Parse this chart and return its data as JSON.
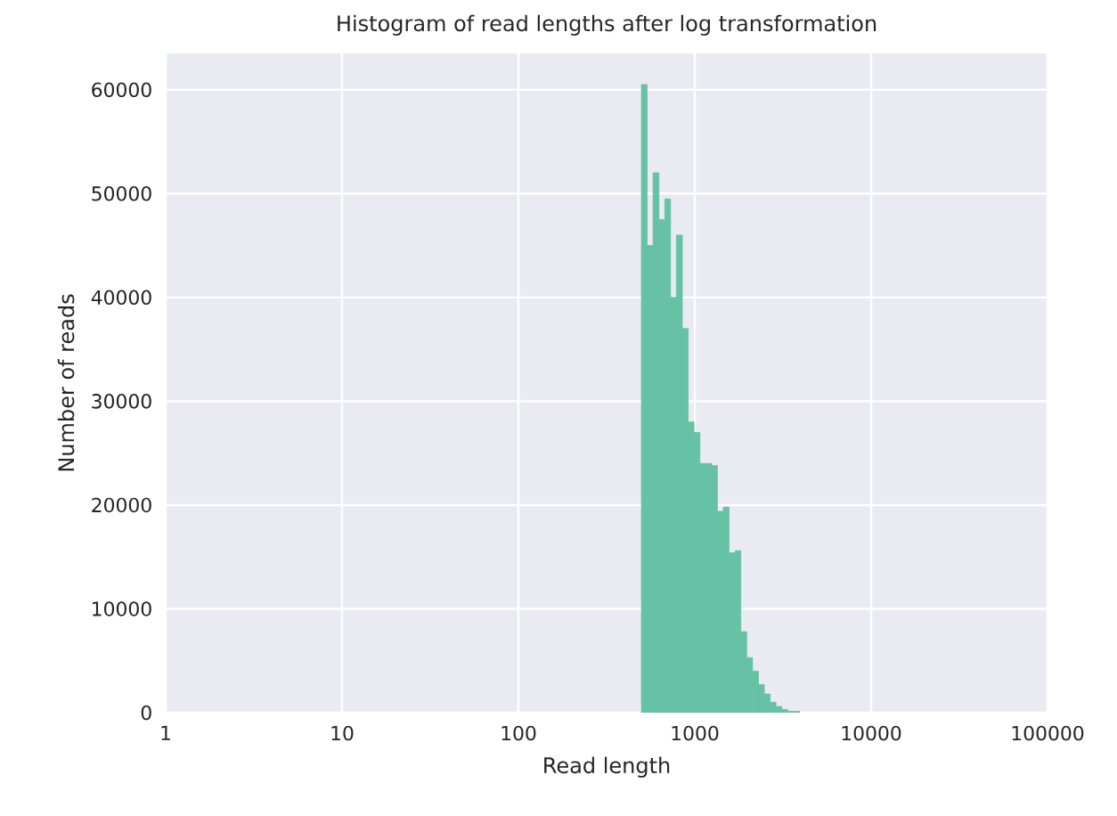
{
  "chart_data": {
    "type": "histogram",
    "title": "Histogram of read lengths after log transformation",
    "xlabel": "Read length",
    "ylabel": "Number of reads",
    "bins": [
      498,
      537,
      580,
      626,
      676,
      729,
      787,
      850,
      918,
      990,
      1069,
      1154,
      1246,
      1345,
      1451,
      1567,
      1691,
      1825,
      1970,
      2127,
      2296,
      2478,
      2675,
      2887,
      3117,
      3365,
      3632,
      3920
    ],
    "values": [
      60500,
      45000,
      52000,
      47500,
      49500,
      40000,
      46000,
      37000,
      28000,
      27000,
      24000,
      24000,
      23800,
      19400,
      19800,
      15400,
      15600,
      7800,
      5300,
      4000,
      2700,
      1800,
      1000,
      600,
      300,
      150,
      150
    ],
    "color": "#66c2a5",
    "log": "x",
    "grid": true,
    "xlim": [
      1,
      100000
    ],
    "xticks": [
      1,
      10,
      100,
      1000,
      10000,
      100000
    ],
    "ylim": [
      0,
      63500
    ],
    "yticks": [
      0,
      10000,
      20000,
      30000,
      40000,
      50000,
      60000
    ]
  }
}
